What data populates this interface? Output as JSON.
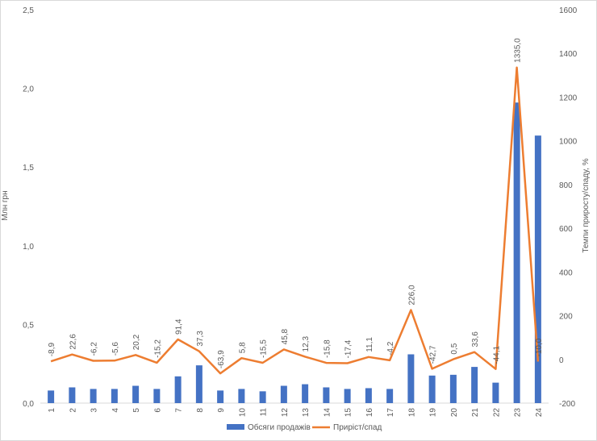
{
  "chart_data": {
    "type": "bar+line",
    "title": "",
    "xlabel": "",
    "categories": [
      "1",
      "2",
      "3",
      "4",
      "5",
      "6",
      "7",
      "8",
      "9",
      "10",
      "11",
      "12",
      "13",
      "14",
      "15",
      "16",
      "17",
      "18",
      "19",
      "20",
      "21",
      "22",
      "23",
      "24"
    ],
    "series": [
      {
        "name": "Обсяги продажів",
        "type": "bar",
        "axis": "left",
        "color": "#4472C4",
        "values": [
          0.08,
          0.1,
          0.09,
          0.09,
          0.11,
          0.09,
          0.17,
          0.24,
          0.08,
          0.09,
          0.075,
          0.11,
          0.12,
          0.1,
          0.09,
          0.095,
          0.09,
          0.31,
          0.175,
          0.18,
          0.23,
          0.13,
          1.91,
          1.7
        ]
      },
      {
        "name": "Приріст/спад",
        "type": "line",
        "axis": "right",
        "color": "#ED7D31",
        "values": [
          -8.9,
          22.6,
          -6.2,
          -5.6,
          20.2,
          -15.2,
          91.4,
          37.3,
          -63.9,
          5.8,
          -15.5,
          45.8,
          12.3,
          -15.8,
          -17.4,
          11.1,
          -4.2,
          226.0,
          -42.7,
          0.5,
          33.6,
          -44.1,
          1335.0,
          -10.0
        ],
        "labels": [
          "-8,9",
          "22,6",
          "-6,2",
          "-5,6",
          "20,2",
          "-15,2",
          "91,4",
          "37,3",
          "-63,9",
          "5,8",
          "-15,5",
          "45,8",
          "12,3",
          "-15,8",
          "-17,4",
          "11,1",
          "-4,2",
          "226,0",
          "-42,7",
          "0,5",
          "33,6",
          "-44,1",
          "1335,0",
          "-10,0"
        ]
      }
    ],
    "y_left": {
      "label": "Млн грн",
      "min": 0,
      "max": 2.5,
      "ticks": [
        0,
        0.5,
        1.0,
        1.5,
        2.0,
        2.5
      ],
      "tick_labels": [
        "0,0",
        "0,5",
        "1,0",
        "1,5",
        "2,0",
        "2,5"
      ]
    },
    "y_right": {
      "label": "Темпи приросту/спаду, %",
      "min": -200,
      "max": 1600,
      "ticks": [
        -200,
        0,
        200,
        400,
        600,
        800,
        1000,
        1200,
        1400,
        1600
      ],
      "tick_labels": [
        "-200",
        "0",
        "200",
        "400",
        "600",
        "800",
        "1000",
        "1200",
        "1400",
        "1600"
      ]
    },
    "grid": false,
    "legend": "bottom"
  }
}
